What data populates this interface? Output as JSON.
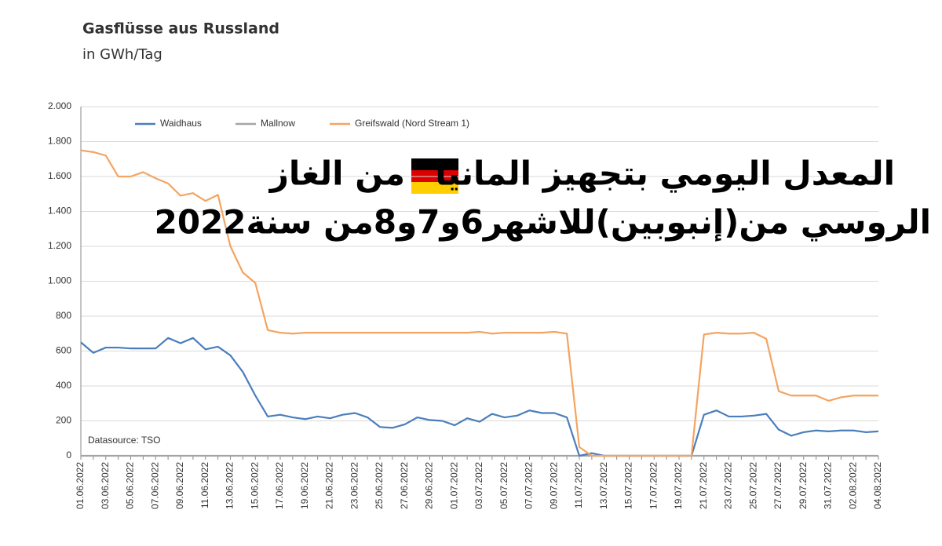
{
  "chart_data": {
    "type": "line",
    "title": "Gasflüsse aus Russland",
    "subtitle": "in GWh/Tag",
    "annotation": "Datasource: TSO",
    "overlay_text": [
      "المعدل اليومي بتجهيز المانيا",
      "من الغاز",
      "الروسي من(إنبوبين)للاشهر6و7و8من سنة2022"
    ],
    "categories": [
      "01.06.2022",
      null,
      "03.06.2022",
      null,
      "05.06.2022",
      null,
      "07.06.2022",
      null,
      "09.06.2022",
      null,
      "11.06.2022",
      null,
      "13.06.2022",
      null,
      "15.06.2022",
      null,
      "17.06.2022",
      null,
      "19.06.2022",
      null,
      "21.06.2022",
      null,
      "23.06.2022",
      null,
      "25.06.2022",
      null,
      "27.06.2022",
      null,
      "29.06.2022",
      null,
      "01.07.2022",
      null,
      "03.07.2022",
      null,
      "05.07.2022",
      null,
      "07.07.2022",
      null,
      "09.07.2022",
      null,
      "11.07.2022",
      null,
      "13.07.2022",
      null,
      "15.07.2022",
      null,
      "17.07.2022",
      null,
      "19.07.2022",
      null,
      "21.07.2022",
      null,
      "23.07.2022",
      null,
      "25.07.2022",
      null,
      "27.07.2022",
      null,
      "29.07.2022",
      null,
      "31.07.2022",
      null,
      "02.08.2022",
      null,
      "04.08.2022"
    ],
    "series": [
      {
        "name": "Waidhaus",
        "color": "#4a7ebb",
        "values": [
          650,
          590,
          620,
          620,
          615,
          615,
          615,
          675,
          645,
          675,
          610,
          625,
          575,
          480,
          345,
          225,
          235,
          220,
          210,
          225,
          215,
          235,
          245,
          220,
          165,
          160,
          180,
          220,
          205,
          200,
          175,
          215,
          195,
          240,
          220,
          230,
          260,
          245,
          245,
          220,
          0,
          15,
          0,
          0,
          0,
          0,
          0,
          0,
          0,
          0,
          235,
          260,
          225,
          225,
          230,
          240,
          150,
          115,
          135,
          145,
          140,
          145,
          145,
          135,
          140
        ]
      },
      {
        "name": "Mallnow",
        "color": "#a5a5a5",
        "values": [
          0,
          0,
          0,
          0,
          0,
          0,
          0,
          0,
          0,
          0,
          0,
          0,
          0,
          0,
          0,
          0,
          0,
          0,
          0,
          0,
          0,
          0,
          0,
          0,
          0,
          0,
          0,
          0,
          0,
          0,
          0,
          0,
          0,
          0,
          0,
          0,
          0,
          0,
          0,
          0,
          0,
          0,
          0,
          0,
          0,
          0,
          0,
          0,
          0,
          0,
          0,
          0,
          0,
          0,
          0,
          0,
          0,
          0,
          0,
          0,
          0,
          0,
          0,
          0,
          0
        ]
      },
      {
        "name": "Greifswald (Nord Stream 1)",
        "color": "#f4a460",
        "values": [
          1750,
          1740,
          1720,
          1600,
          1600,
          1625,
          1590,
          1560,
          1490,
          1505,
          1460,
          1495,
          1200,
          1050,
          990,
          720,
          705,
          700,
          705,
          705,
          705,
          705,
          705,
          705,
          705,
          705,
          705,
          705,
          705,
          705,
          705,
          705,
          710,
          700,
          705,
          705,
          705,
          705,
          710,
          700,
          50,
          0,
          0,
          0,
          0,
          0,
          0,
          0,
          0,
          0,
          695,
          705,
          700,
          700,
          705,
          670,
          370,
          345,
          345,
          345,
          315,
          335,
          345,
          345,
          345
        ]
      }
    ],
    "ylim": [
      0,
      2000
    ],
    "yticks": [
      0,
      200,
      400,
      600,
      800,
      {
        "value": 1000,
        "label": "1.000"
      },
      {
        "value": 1200,
        "label": "1.200"
      },
      {
        "value": 1400,
        "label": "1.400"
      },
      {
        "value": 1600,
        "label": "1.600"
      },
      {
        "value": 1800,
        "label": "1.800"
      },
      {
        "value": 2000,
        "label": "2.000"
      }
    ],
    "grid": true,
    "legend": "top"
  }
}
